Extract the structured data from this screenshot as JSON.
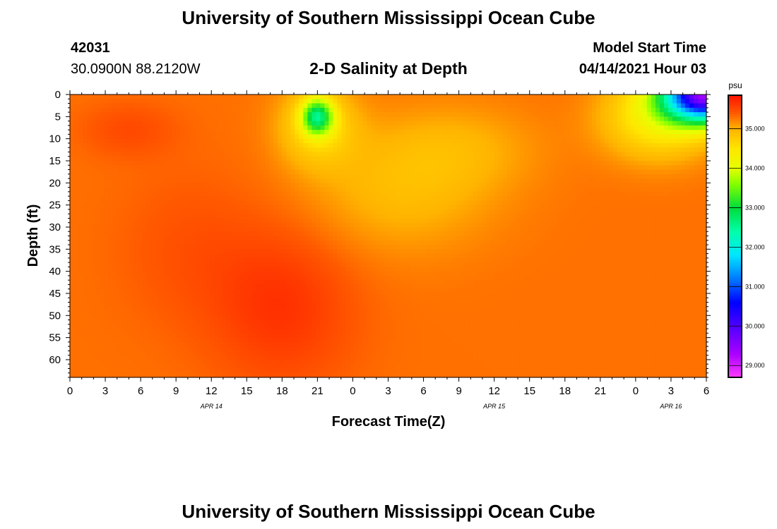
{
  "header": {
    "title_top": "University of Southern Mississippi Ocean Cube",
    "title_bottom": "University of Southern Mississippi Ocean Cube",
    "station_id": "42031",
    "station_coords": "30.0900N  88.2120W",
    "model_label": "Model Start Time",
    "model_time": "04/14/2021 Hour 03"
  },
  "colorbar": {
    "unit": "psu",
    "range": [
      28.7,
      35.85
    ],
    "ticks": [
      "29.000",
      "30.000",
      "31.000",
      "32.000",
      "33.000",
      "34.000",
      "35.000"
    ],
    "tick_values": [
      29,
      30,
      31,
      32,
      33,
      34,
      35
    ]
  },
  "chart_data": {
    "type": "heatmap",
    "title": "2-D Salinity at Depth",
    "xlabel": "Forecast Time(Z)",
    "ylabel": "Depth (ft)",
    "xlim": [
      0,
      54
    ],
    "ylim": [
      0,
      64
    ],
    "x_ticks": [
      0,
      3,
      6,
      9,
      12,
      15,
      18,
      21,
      24,
      27,
      30,
      33,
      36,
      39,
      42,
      45,
      48,
      51,
      54
    ],
    "x_tick_labels": [
      "0",
      "3",
      "6",
      "9",
      "12",
      "15",
      "18",
      "21",
      "0",
      "3",
      "6",
      "9",
      "12",
      "15",
      "18",
      "21",
      "0",
      "3",
      "6"
    ],
    "y_ticks": [
      0,
      5,
      10,
      15,
      20,
      25,
      30,
      35,
      40,
      45,
      50,
      55,
      60
    ],
    "y_tick_labels": [
      "0",
      "5",
      "10",
      "15",
      "20",
      "25",
      "30",
      "35",
      "40",
      "45",
      "50",
      "55",
      "60"
    ],
    "day_labels": [
      {
        "x": 12,
        "text": "APR 14"
      },
      {
        "x": 36,
        "text": "APR 15"
      },
      {
        "x": 51,
        "text": "APR 16"
      }
    ],
    "grid": false,
    "features": [
      {
        "kind": "baseline",
        "value": 35.3
      },
      {
        "kind": "blob",
        "x": 21,
        "y": 5,
        "sx": 1.3,
        "sy": 4,
        "amp": -2.1
      },
      {
        "kind": "blob",
        "x": 21,
        "y": 7,
        "sx": 3.2,
        "sy": 9,
        "amp": -0.7
      },
      {
        "kind": "blob",
        "x": 54,
        "y": 0,
        "sx": 3.5,
        "sy": 6,
        "amp": -5.6
      },
      {
        "kind": "blob",
        "x": 50,
        "y": 5,
        "sx": 4.5,
        "sy": 9,
        "amp": -1.0
      },
      {
        "kind": "blob",
        "x": 28,
        "y": 22,
        "sx": 8,
        "sy": 14,
        "amp": -0.35
      },
      {
        "kind": "blob",
        "x": 33,
        "y": 12,
        "sx": 7,
        "sy": 10,
        "amp": -0.25
      },
      {
        "kind": "blob",
        "x": 18,
        "y": 48,
        "sx": 6,
        "sy": 18,
        "amp": 0.35
      },
      {
        "kind": "blob",
        "x": 5,
        "y": 8,
        "sx": 4,
        "sy": 6,
        "amp": 0.2
      },
      {
        "kind": "blob",
        "x": 10,
        "y": 35,
        "sx": 6,
        "sy": 18,
        "amp": 0.15
      }
    ]
  }
}
